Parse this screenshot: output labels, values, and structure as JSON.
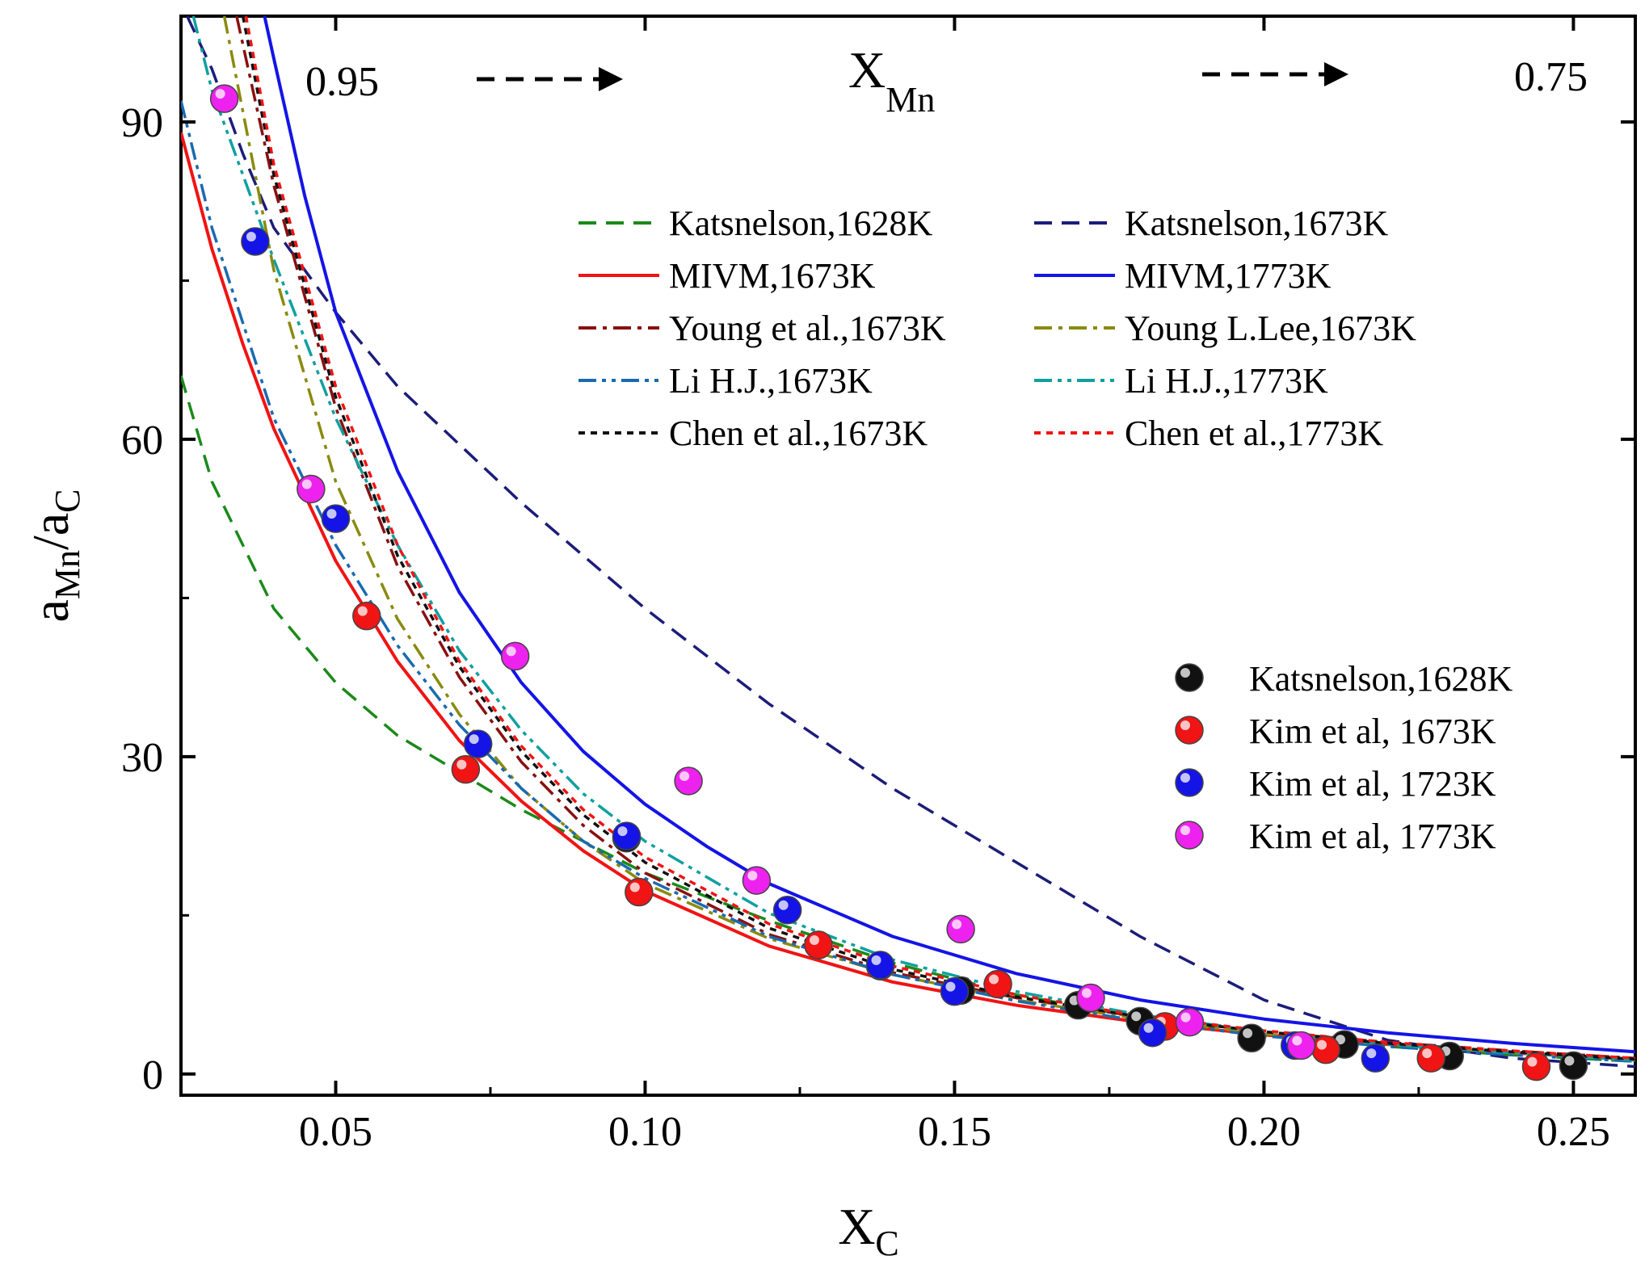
{
  "chart_data": {
    "type": "line+scatter",
    "xlabel": "X",
    "xlabel_sub": "C",
    "ylabel_a": "a",
    "ylabel_a_sub": "Mn",
    "ylabel_sep": "/a",
    "ylabel_b_sub": "C",
    "xlim": [
      0.025,
      0.26
    ],
    "ylim": [
      -2,
      100
    ],
    "xticks": [
      0.05,
      0.1,
      0.15,
      0.2,
      0.25
    ],
    "xtick_labels": [
      "0.05",
      "0.10",
      "0.15",
      "0.20",
      "0.25"
    ],
    "yticks": [
      0,
      30,
      60,
      90
    ],
    "ytick_labels": [
      "0",
      "30",
      "60",
      "90"
    ],
    "top_axis": {
      "label": "X",
      "label_sub": "Mn",
      "left_value": "0.95",
      "right_value": "0.75"
    },
    "line_series": [
      {
        "name": "Katsnelson,1628K",
        "color": "#1a8a1a",
        "dash": "dash",
        "points": [
          [
            0.025,
            66
          ],
          [
            0.03,
            56
          ],
          [
            0.04,
            44
          ],
          [
            0.05,
            37
          ],
          [
            0.06,
            32
          ],
          [
            0.07,
            28.5
          ],
          [
            0.08,
            25
          ],
          [
            0.09,
            22
          ],
          [
            0.1,
            19
          ],
          [
            0.12,
            14.5
          ],
          [
            0.14,
            10.5
          ],
          [
            0.16,
            7.5
          ],
          [
            0.18,
            5.3
          ],
          [
            0.2,
            3.7
          ],
          [
            0.22,
            2.6
          ],
          [
            0.24,
            1.8
          ],
          [
            0.26,
            1.2
          ]
        ]
      },
      {
        "name": "Katsnelson,1673K",
        "color": "#1c1c7a",
        "dash": "dash",
        "points": [
          [
            0.026,
            100
          ],
          [
            0.03,
            95
          ],
          [
            0.035,
            87
          ],
          [
            0.04,
            80
          ],
          [
            0.05,
            72
          ],
          [
            0.06,
            65
          ],
          [
            0.08,
            54
          ],
          [
            0.1,
            44
          ],
          [
            0.12,
            35
          ],
          [
            0.14,
            27
          ],
          [
            0.16,
            20
          ],
          [
            0.18,
            13
          ],
          [
            0.2,
            7
          ],
          [
            0.22,
            3.2
          ],
          [
            0.24,
            1.5
          ],
          [
            0.26,
            0.7
          ]
        ]
      },
      {
        "name": "MIVM,1673K",
        "color": "#f01414",
        "dash": "solid",
        "points": [
          [
            0.025,
            89
          ],
          [
            0.03,
            78
          ],
          [
            0.035,
            69
          ],
          [
            0.04,
            61
          ],
          [
            0.05,
            48.5
          ],
          [
            0.06,
            39
          ],
          [
            0.07,
            31.5
          ],
          [
            0.08,
            25.8
          ],
          [
            0.09,
            21.1
          ],
          [
            0.1,
            17.3
          ],
          [
            0.12,
            12.1
          ],
          [
            0.14,
            8.7
          ],
          [
            0.16,
            6.5
          ],
          [
            0.18,
            4.9
          ],
          [
            0.2,
            3.7
          ],
          [
            0.22,
            2.8
          ],
          [
            0.24,
            2.0
          ],
          [
            0.26,
            1.4
          ]
        ]
      },
      {
        "name": "MIVM,1773K",
        "color": "#1414e6",
        "dash": "solid",
        "points": [
          [
            0.0385,
            100
          ],
          [
            0.04,
            96
          ],
          [
            0.045,
            83
          ],
          [
            0.05,
            72
          ],
          [
            0.06,
            57
          ],
          [
            0.07,
            45.5
          ],
          [
            0.08,
            37
          ],
          [
            0.09,
            30.5
          ],
          [
            0.1,
            25.5
          ],
          [
            0.11,
            21.5
          ],
          [
            0.12,
            18
          ],
          [
            0.14,
            13
          ],
          [
            0.16,
            9.5
          ],
          [
            0.18,
            7
          ],
          [
            0.2,
            5.2
          ],
          [
            0.22,
            3.9
          ],
          [
            0.24,
            2.9
          ],
          [
            0.26,
            2.1
          ]
        ]
      },
      {
        "name": "Young et al.,1673K",
        "color": "#8a1010",
        "dash": "dashdot",
        "points": [
          [
            0.034,
            100
          ],
          [
            0.04,
            84
          ],
          [
            0.05,
            63
          ],
          [
            0.06,
            48
          ],
          [
            0.07,
            37.5
          ],
          [
            0.08,
            29.5
          ],
          [
            0.09,
            23.5
          ],
          [
            0.1,
            19
          ],
          [
            0.12,
            13.2
          ],
          [
            0.14,
            9.6
          ],
          [
            0.16,
            7.2
          ],
          [
            0.18,
            5.4
          ],
          [
            0.2,
            4.0
          ],
          [
            0.22,
            3.0
          ],
          [
            0.24,
            2.2
          ],
          [
            0.26,
            1.5
          ]
        ]
      },
      {
        "name": "Young L.Lee,1673K",
        "color": "#8a8a10",
        "dash": "dashdot",
        "points": [
          [
            0.032,
            100
          ],
          [
            0.04,
            76
          ],
          [
            0.05,
            56
          ],
          [
            0.06,
            43
          ],
          [
            0.07,
            34
          ],
          [
            0.08,
            27
          ],
          [
            0.09,
            22
          ],
          [
            0.1,
            18
          ],
          [
            0.12,
            12.8
          ],
          [
            0.14,
            9.4
          ],
          [
            0.16,
            7.0
          ],
          [
            0.18,
            5.2
          ],
          [
            0.2,
            3.8
          ],
          [
            0.22,
            2.8
          ],
          [
            0.24,
            2.0
          ],
          [
            0.26,
            1.4
          ]
        ]
      },
      {
        "name": "Li H.J.,1673K",
        "color": "#1a6ab0",
        "dash": "dashdotdot",
        "points": [
          [
            0.025,
            92
          ],
          [
            0.03,
            80
          ],
          [
            0.04,
            62
          ],
          [
            0.05,
            50
          ],
          [
            0.06,
            40.5
          ],
          [
            0.07,
            33
          ],
          [
            0.08,
            27
          ],
          [
            0.09,
            22
          ],
          [
            0.1,
            18.5
          ],
          [
            0.12,
            13
          ],
          [
            0.14,
            9.4
          ],
          [
            0.16,
            6.9
          ],
          [
            0.18,
            5.0
          ],
          [
            0.2,
            3.6
          ],
          [
            0.22,
            2.6
          ],
          [
            0.24,
            1.8
          ],
          [
            0.26,
            1.2
          ]
        ]
      },
      {
        "name": "Li H.J.,1773K",
        "color": "#10a0a0",
        "dash": "dashdotdot",
        "points": [
          [
            0.027,
            100
          ],
          [
            0.03,
            93
          ],
          [
            0.04,
            77
          ],
          [
            0.05,
            62
          ],
          [
            0.06,
            50
          ],
          [
            0.07,
            40
          ],
          [
            0.08,
            32.5
          ],
          [
            0.09,
            26.5
          ],
          [
            0.1,
            22
          ],
          [
            0.12,
            15.2
          ],
          [
            0.14,
            10.8
          ],
          [
            0.16,
            7.8
          ],
          [
            0.18,
            5.6
          ],
          [
            0.2,
            4.0
          ],
          [
            0.22,
            2.8
          ],
          [
            0.24,
            2.0
          ],
          [
            0.26,
            1.3
          ]
        ]
      },
      {
        "name": "Chen et al.,1673K",
        "color": "#111111",
        "dash": "dot",
        "points": [
          [
            0.035,
            100
          ],
          [
            0.04,
            85
          ],
          [
            0.05,
            64
          ],
          [
            0.06,
            49
          ],
          [
            0.07,
            38.5
          ],
          [
            0.08,
            30.5
          ],
          [
            0.09,
            24.5
          ],
          [
            0.1,
            20
          ],
          [
            0.12,
            13.8
          ],
          [
            0.14,
            9.9
          ],
          [
            0.16,
            7.3
          ],
          [
            0.18,
            5.4
          ],
          [
            0.2,
            4.0
          ],
          [
            0.22,
            2.9
          ],
          [
            0.24,
            2.1
          ],
          [
            0.26,
            1.4
          ]
        ]
      },
      {
        "name": "Chen et al.,1773K",
        "color": "#f01414",
        "dash": "dot",
        "points": [
          [
            0.0355,
            100
          ],
          [
            0.04,
            86
          ],
          [
            0.05,
            65
          ],
          [
            0.06,
            50
          ],
          [
            0.07,
            39
          ],
          [
            0.08,
            31
          ],
          [
            0.09,
            25
          ],
          [
            0.1,
            20.5
          ],
          [
            0.12,
            14.2
          ],
          [
            0.14,
            10.2
          ],
          [
            0.16,
            7.5
          ],
          [
            0.18,
            5.5
          ],
          [
            0.2,
            4.1
          ],
          [
            0.22,
            3.0
          ],
          [
            0.24,
            2.2
          ],
          [
            0.26,
            1.5
          ]
        ]
      }
    ],
    "scatter_series": [
      {
        "name": "Katsnelson,1628K",
        "color": "#111111",
        "points": [
          [
            0.097,
            22.3
          ],
          [
            0.128,
            12.2
          ],
          [
            0.138,
            10.2
          ],
          [
            0.151,
            7.9
          ],
          [
            0.17,
            6.5
          ],
          [
            0.18,
            5
          ],
          [
            0.198,
            3.4
          ],
          [
            0.213,
            2.8
          ],
          [
            0.23,
            1.7
          ],
          [
            0.25,
            0.8
          ]
        ]
      },
      {
        "name": "Kim et al, 1673K",
        "color": "#f01414",
        "points": [
          [
            0.055,
            43.3
          ],
          [
            0.071,
            28.8
          ],
          [
            0.099,
            17.2
          ],
          [
            0.128,
            12.2
          ],
          [
            0.157,
            8.5
          ],
          [
            0.184,
            4.5
          ],
          [
            0.21,
            2.3
          ],
          [
            0.227,
            1.5
          ],
          [
            0.244,
            0.7
          ]
        ]
      },
      {
        "name": "Kim et al, 1723K",
        "color": "#1414e6",
        "points": [
          [
            0.037,
            78.7
          ],
          [
            0.05,
            52.5
          ],
          [
            0.073,
            31.2
          ],
          [
            0.097,
            22.5
          ],
          [
            0.123,
            15.5
          ],
          [
            0.138,
            10.3
          ],
          [
            0.15,
            7.8
          ],
          [
            0.182,
            3.9
          ],
          [
            0.205,
            2.7
          ],
          [
            0.218,
            1.5
          ]
        ]
      },
      {
        "name": "Kim et al, 1773K",
        "color": "#ee22ee",
        "points": [
          [
            0.032,
            92.2
          ],
          [
            0.046,
            55.3
          ],
          [
            0.079,
            39.5
          ],
          [
            0.107,
            27.7
          ],
          [
            0.118,
            18.3
          ],
          [
            0.151,
            13.7
          ],
          [
            0.172,
            7.2
          ],
          [
            0.188,
            4.9
          ],
          [
            0.206,
            2.7
          ]
        ]
      }
    ]
  }
}
